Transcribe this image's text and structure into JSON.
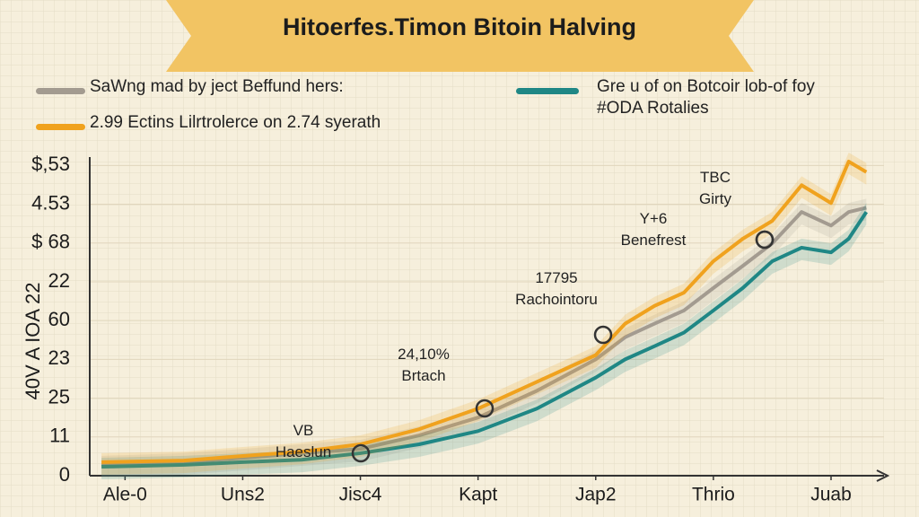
{
  "chart_data": {
    "type": "line",
    "title": "Hitoerfes.Timon Bitoin Halving",
    "y_label": "40V A IOA 22",
    "x": [
      -0.2,
      0.5,
      1,
      1.5,
      2,
      2.5,
      3,
      3.5,
      4,
      4.25,
      4.5,
      4.75,
      5,
      5.25,
      5.5,
      5.75,
      6,
      6.15,
      6.3
    ],
    "xlim": [
      -0.3,
      6.45
    ],
    "xticks": [
      {
        "value": 0,
        "label": "Ale-0"
      },
      {
        "value": 1,
        "label": "Uns2"
      },
      {
        "value": 2,
        "label": "Jisc4"
      },
      {
        "value": 3,
        "label": "Kapt"
      },
      {
        "value": 4,
        "label": "Jap2"
      },
      {
        "value": 5,
        "label": "Thrio"
      },
      {
        "value": 6,
        "label": "Juab"
      }
    ],
    "ylim": [
      0,
      8.1
    ],
    "yticks": [
      {
        "value": 0,
        "label": "0"
      },
      {
        "value": 1,
        "label": "11"
      },
      {
        "value": 2,
        "label": "25"
      },
      {
        "value": 3,
        "label": "23"
      },
      {
        "value": 4,
        "label": "60"
      },
      {
        "value": 5,
        "label": "22"
      },
      {
        "value": 6,
        "label": "$ 68"
      },
      {
        "value": 7,
        "label": "4.53"
      },
      {
        "value": 8,
        "label": "$,53"
      }
    ],
    "series": [
      {
        "name": "SaWng mad by ject Beffund hers:",
        "color": "#a39b90",
        "values": [
          0.28,
          0.35,
          0.46,
          0.58,
          0.69,
          1.04,
          1.5,
          2.19,
          3.0,
          3.57,
          3.92,
          4.26,
          4.84,
          5.41,
          5.99,
          6.8,
          6.45,
          6.8,
          6.91
        ]
      },
      {
        "name": "2.99 Ectins Lilrtrolerce on 2.74 syerath",
        "color": "#f0a21e",
        "values": [
          0.35,
          0.39,
          0.51,
          0.62,
          0.81,
          1.2,
          1.73,
          2.42,
          3.11,
          3.92,
          4.38,
          4.72,
          5.53,
          6.11,
          6.57,
          7.49,
          7.03,
          8.1,
          7.83
        ]
      },
      {
        "name": "Gre u of on Botcoir lob-of foy\n#ODA Rotalies",
        "color": "#1f8785",
        "values": [
          0.23,
          0.28,
          0.35,
          0.41,
          0.58,
          0.81,
          1.15,
          1.73,
          2.53,
          3.0,
          3.34,
          3.69,
          4.26,
          4.84,
          5.53,
          5.88,
          5.76,
          6.11,
          6.8
        ]
      }
    ],
    "annotations": [
      "VB\nHaeslun",
      "24,10%\nBrtach",
      "17795\nRachointoru",
      "Y+6\nBenefrest",
      "TBC\nGirty"
    ],
    "grid": true
  }
}
